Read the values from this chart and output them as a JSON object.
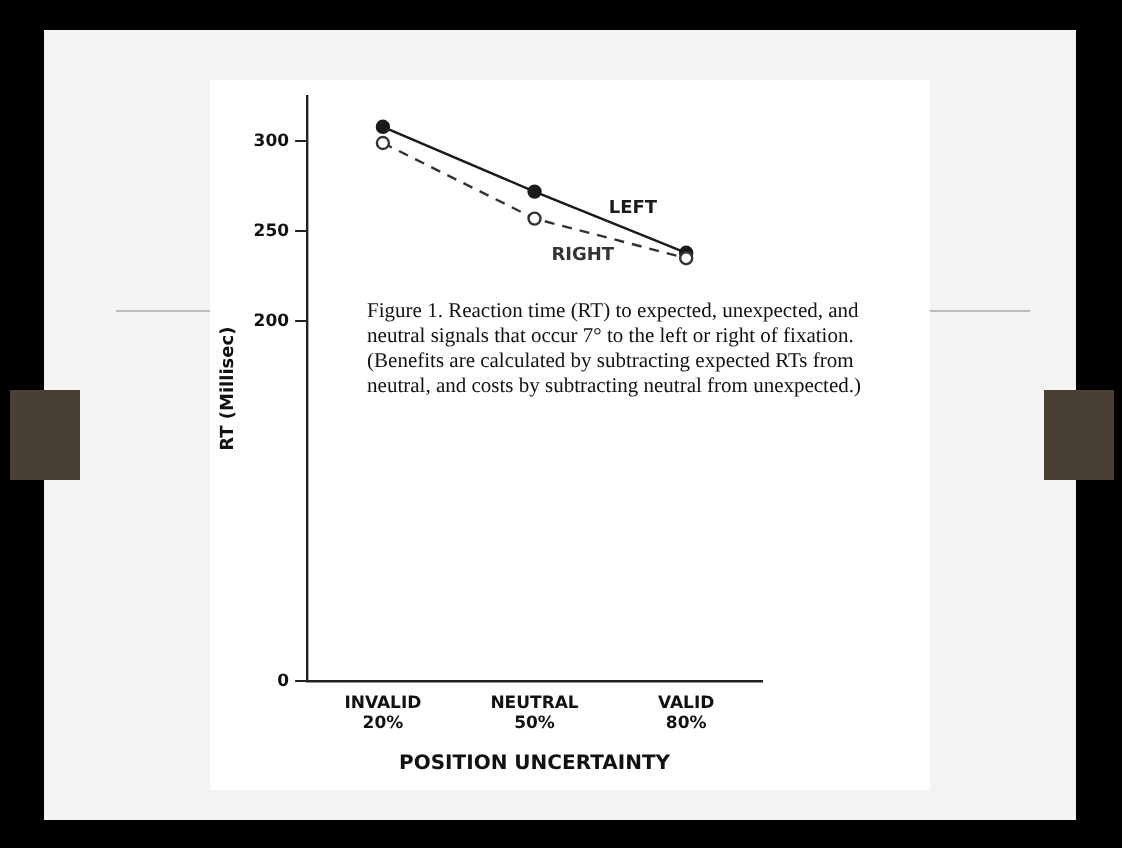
{
  "chart_data": {
    "type": "line",
    "xlabel": "POSITION UNCERTAINTY",
    "ylabel": "RT (Millisec)",
    "categories": [
      "INVALID\n20%",
      "NEUTRAL\n50%",
      "VALID\n80%"
    ],
    "series": [
      {
        "name": "LEFT",
        "color": "#1a1a1a",
        "values": [
          308,
          272,
          238
        ],
        "line_style": "solid",
        "marker": "circle"
      },
      {
        "name": "RIGHT",
        "color": "#333333",
        "values": [
          299,
          257,
          235
        ],
        "line_style": "dashed",
        "marker": "circle"
      }
    ],
    "ylim": [
      0,
      325
    ],
    "yticks": [
      0,
      200,
      250,
      300
    ],
    "grid": false,
    "legend": false,
    "annotations": [
      "Figure 1. Reaction time (RT) to expected, unexpected, and neutral signals that occur 7° to the left or right of fixation. (Benefits are calculated by subtracting expected RTs from neutral, and costs by subtracting neutral from unexpected.)"
    ]
  }
}
